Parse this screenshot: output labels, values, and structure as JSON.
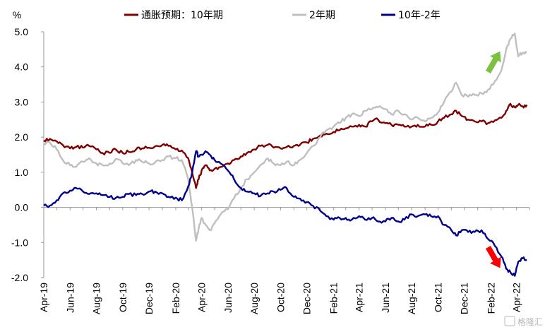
{
  "chart_data": {
    "type": "line",
    "ylabel": "%",
    "ylim": [
      -2.0,
      5.0
    ],
    "yticks": [
      "5.0",
      "4.0",
      "3.0",
      "2.0",
      "1.0",
      "0.0",
      "-1.0",
      "-2.0"
    ],
    "ytick_values": [
      5,
      4,
      3,
      2,
      1,
      0,
      -1,
      -2
    ],
    "xlim": [
      "2019-04-01",
      "2022-05-01"
    ],
    "x_tick_labels": [
      "Apr-19",
      "Jun-19",
      "Aug-19",
      "Oct-19",
      "Dec-19",
      "Feb-20",
      "Apr-20",
      "Jun-20",
      "Aug-20",
      "Oct-20",
      "Dec-20",
      "Feb-21",
      "Apr-21",
      "Jun-21",
      "Aug-21",
      "Oct-21",
      "Dec-21",
      "Feb-22",
      "Apr-22"
    ],
    "x_tick_dates": [
      "2019-04-01",
      "2019-06-01",
      "2019-08-01",
      "2019-10-01",
      "2019-12-01",
      "2020-02-01",
      "2020-04-01",
      "2020-06-01",
      "2020-08-01",
      "2020-10-01",
      "2020-12-01",
      "2021-02-01",
      "2021-04-01",
      "2021-06-01",
      "2021-08-01",
      "2021-10-01",
      "2021-12-01",
      "2022-02-01",
      "2022-04-01"
    ],
    "grid": false,
    "legend_position": "top",
    "series": [
      {
        "name": "通胀预期：10年期",
        "color": "#7f0000",
        "points": [
          [
            "2019-04-01",
            1.9
          ],
          [
            "2019-04-15",
            1.95
          ],
          [
            "2019-05-01",
            1.88
          ],
          [
            "2019-05-15",
            1.78
          ],
          [
            "2019-06-01",
            1.68
          ],
          [
            "2019-06-15",
            1.72
          ],
          [
            "2019-07-01",
            1.7
          ],
          [
            "2019-07-15",
            1.75
          ],
          [
            "2019-08-01",
            1.65
          ],
          [
            "2019-08-15",
            1.55
          ],
          [
            "2019-09-01",
            1.55
          ],
          [
            "2019-09-15",
            1.65
          ],
          [
            "2019-10-01",
            1.55
          ],
          [
            "2019-10-15",
            1.58
          ],
          [
            "2019-11-01",
            1.65
          ],
          [
            "2019-11-15",
            1.68
          ],
          [
            "2019-12-01",
            1.7
          ],
          [
            "2019-12-15",
            1.74
          ],
          [
            "2020-01-01",
            1.78
          ],
          [
            "2020-01-15",
            1.75
          ],
          [
            "2020-02-01",
            1.65
          ],
          [
            "2020-02-15",
            1.62
          ],
          [
            "2020-03-01",
            1.4
          ],
          [
            "2020-03-10",
            1.0
          ],
          [
            "2020-03-19",
            0.55
          ],
          [
            "2020-03-25",
            0.8
          ],
          [
            "2020-04-01",
            1.05
          ],
          [
            "2020-04-10",
            1.2
          ],
          [
            "2020-04-20",
            1.05
          ],
          [
            "2020-05-01",
            1.1
          ],
          [
            "2020-05-15",
            1.15
          ],
          [
            "2020-06-01",
            1.25
          ],
          [
            "2020-06-15",
            1.35
          ],
          [
            "2020-07-01",
            1.45
          ],
          [
            "2020-07-15",
            1.55
          ],
          [
            "2020-08-01",
            1.65
          ],
          [
            "2020-08-15",
            1.75
          ],
          [
            "2020-09-01",
            1.78
          ],
          [
            "2020-09-15",
            1.7
          ],
          [
            "2020-10-01",
            1.68
          ],
          [
            "2020-10-15",
            1.72
          ],
          [
            "2020-11-01",
            1.75
          ],
          [
            "2020-11-15",
            1.78
          ],
          [
            "2020-12-01",
            1.85
          ],
          [
            "2020-12-15",
            1.95
          ],
          [
            "2021-01-01",
            2.05
          ],
          [
            "2021-01-15",
            2.1
          ],
          [
            "2021-02-01",
            2.15
          ],
          [
            "2021-02-15",
            2.2
          ],
          [
            "2021-03-01",
            2.25
          ],
          [
            "2021-03-15",
            2.3
          ],
          [
            "2021-04-01",
            2.35
          ],
          [
            "2021-04-15",
            2.3
          ],
          [
            "2021-05-01",
            2.45
          ],
          [
            "2021-05-15",
            2.5
          ],
          [
            "2021-06-01",
            2.4
          ],
          [
            "2021-06-15",
            2.35
          ],
          [
            "2021-07-01",
            2.35
          ],
          [
            "2021-07-15",
            2.3
          ],
          [
            "2021-08-01",
            2.3
          ],
          [
            "2021-08-15",
            2.35
          ],
          [
            "2021-09-01",
            2.3
          ],
          [
            "2021-09-15",
            2.35
          ],
          [
            "2021-10-01",
            2.45
          ],
          [
            "2021-10-15",
            2.55
          ],
          [
            "2021-11-01",
            2.65
          ],
          [
            "2021-11-12",
            2.75
          ],
          [
            "2021-11-25",
            2.6
          ],
          [
            "2021-12-10",
            2.5
          ],
          [
            "2021-12-25",
            2.45
          ],
          [
            "2022-01-10",
            2.45
          ],
          [
            "2022-01-25",
            2.4
          ],
          [
            "2022-02-10",
            2.48
          ],
          [
            "2022-02-25",
            2.55
          ],
          [
            "2022-03-08",
            2.75
          ],
          [
            "2022-03-18",
            2.95
          ],
          [
            "2022-03-28",
            2.85
          ],
          [
            "2022-04-05",
            2.92
          ],
          [
            "2022-04-15",
            2.88
          ],
          [
            "2022-04-25",
            2.92
          ]
        ]
      },
      {
        "name": "2年期",
        "color": "#bfbfbf",
        "points": [
          [
            "2019-04-01",
            1.82
          ],
          [
            "2019-04-15",
            1.85
          ],
          [
            "2019-05-01",
            1.65
          ],
          [
            "2019-05-15",
            1.35
          ],
          [
            "2019-06-01",
            1.2
          ],
          [
            "2019-06-15",
            1.15
          ],
          [
            "2019-07-01",
            1.3
          ],
          [
            "2019-07-15",
            1.4
          ],
          [
            "2019-08-01",
            1.25
          ],
          [
            "2019-08-15",
            1.2
          ],
          [
            "2019-09-01",
            1.25
          ],
          [
            "2019-09-15",
            1.38
          ],
          [
            "2019-10-01",
            1.25
          ],
          [
            "2019-10-15",
            1.2
          ],
          [
            "2019-11-01",
            1.35
          ],
          [
            "2019-11-15",
            1.3
          ],
          [
            "2019-12-01",
            1.25
          ],
          [
            "2019-12-15",
            1.28
          ],
          [
            "2020-01-01",
            1.35
          ],
          [
            "2020-01-15",
            1.45
          ],
          [
            "2020-02-01",
            1.4
          ],
          [
            "2020-02-15",
            1.35
          ],
          [
            "2020-03-01",
            0.8
          ],
          [
            "2020-03-10",
            0.0
          ],
          [
            "2020-03-19",
            -0.95
          ],
          [
            "2020-03-25",
            -0.6
          ],
          [
            "2020-04-01",
            -0.3
          ],
          [
            "2020-04-10",
            -0.5
          ],
          [
            "2020-04-20",
            -0.65
          ],
          [
            "2020-05-01",
            -0.45
          ],
          [
            "2020-05-15",
            -0.2
          ],
          [
            "2020-06-01",
            -0.05
          ],
          [
            "2020-06-15",
            0.25
          ],
          [
            "2020-07-01",
            0.55
          ],
          [
            "2020-07-15",
            0.8
          ],
          [
            "2020-08-01",
            1.0
          ],
          [
            "2020-08-15",
            1.2
          ],
          [
            "2020-09-01",
            1.4
          ],
          [
            "2020-09-15",
            1.25
          ],
          [
            "2020-10-01",
            1.2
          ],
          [
            "2020-10-15",
            1.3
          ],
          [
            "2020-11-01",
            1.2
          ],
          [
            "2020-11-15",
            1.35
          ],
          [
            "2020-12-01",
            1.55
          ],
          [
            "2020-12-15",
            1.75
          ],
          [
            "2021-01-01",
            2.0
          ],
          [
            "2021-01-15",
            2.2
          ],
          [
            "2021-02-01",
            2.3
          ],
          [
            "2021-02-15",
            2.4
          ],
          [
            "2021-03-01",
            2.55
          ],
          [
            "2021-03-15",
            2.65
          ],
          [
            "2021-04-01",
            2.6
          ],
          [
            "2021-04-15",
            2.75
          ],
          [
            "2021-05-01",
            2.8
          ],
          [
            "2021-05-15",
            2.85
          ],
          [
            "2021-06-01",
            2.8
          ],
          [
            "2021-06-15",
            2.65
          ],
          [
            "2021-07-01",
            2.75
          ],
          [
            "2021-07-15",
            2.65
          ],
          [
            "2021-08-01",
            2.5
          ],
          [
            "2021-08-15",
            2.55
          ],
          [
            "2021-09-01",
            2.45
          ],
          [
            "2021-09-15",
            2.55
          ],
          [
            "2021-10-01",
            2.7
          ],
          [
            "2021-10-15",
            3.0
          ],
          [
            "2021-11-01",
            3.3
          ],
          [
            "2021-11-12",
            3.55
          ],
          [
            "2021-11-25",
            3.2
          ],
          [
            "2021-12-10",
            3.15
          ],
          [
            "2021-12-25",
            3.2
          ],
          [
            "2022-01-10",
            3.25
          ],
          [
            "2022-01-25",
            3.35
          ],
          [
            "2022-02-10",
            3.6
          ],
          [
            "2022-02-25",
            3.9
          ],
          [
            "2022-03-08",
            4.5
          ],
          [
            "2022-03-18",
            4.8
          ],
          [
            "2022-03-28",
            4.95
          ],
          [
            "2022-04-05",
            4.3
          ],
          [
            "2022-04-15",
            4.4
          ],
          [
            "2022-04-25",
            4.42
          ]
        ]
      },
      {
        "name": "10年-2年",
        "color": "#00008b",
        "points": [
          [
            "2019-04-01",
            0.05
          ],
          [
            "2019-04-15",
            0.05
          ],
          [
            "2019-05-01",
            0.2
          ],
          [
            "2019-05-15",
            0.4
          ],
          [
            "2019-06-01",
            0.48
          ],
          [
            "2019-06-15",
            0.55
          ],
          [
            "2019-07-01",
            0.45
          ],
          [
            "2019-07-15",
            0.38
          ],
          [
            "2019-08-01",
            0.4
          ],
          [
            "2019-08-15",
            0.35
          ],
          [
            "2019-09-01",
            0.3
          ],
          [
            "2019-09-15",
            0.27
          ],
          [
            "2019-10-01",
            0.3
          ],
          [
            "2019-10-15",
            0.38
          ],
          [
            "2019-11-01",
            0.35
          ],
          [
            "2019-11-15",
            0.38
          ],
          [
            "2019-12-01",
            0.45
          ],
          [
            "2019-12-15",
            0.45
          ],
          [
            "2020-01-01",
            0.4
          ],
          [
            "2020-01-15",
            0.3
          ],
          [
            "2020-02-01",
            0.28
          ],
          [
            "2020-02-15",
            0.2
          ],
          [
            "2020-03-01",
            0.6
          ],
          [
            "2020-03-10",
            1.0
          ],
          [
            "2020-03-19",
            1.6
          ],
          [
            "2020-03-25",
            1.45
          ],
          [
            "2020-04-01",
            1.5
          ],
          [
            "2020-04-10",
            1.6
          ],
          [
            "2020-04-20",
            1.5
          ],
          [
            "2020-05-01",
            1.35
          ],
          [
            "2020-05-15",
            1.25
          ],
          [
            "2020-06-01",
            1.05
          ],
          [
            "2020-06-15",
            0.8
          ],
          [
            "2020-07-01",
            0.55
          ],
          [
            "2020-07-15",
            0.45
          ],
          [
            "2020-08-01",
            0.4
          ],
          [
            "2020-08-15",
            0.32
          ],
          [
            "2020-09-01",
            0.4
          ],
          [
            "2020-09-15",
            0.45
          ],
          [
            "2020-10-01",
            0.5
          ],
          [
            "2020-10-15",
            0.55
          ],
          [
            "2020-11-01",
            0.3
          ],
          [
            "2020-11-15",
            0.25
          ],
          [
            "2020-12-01",
            0.15
          ],
          [
            "2020-12-15",
            0.05
          ],
          [
            "2021-01-01",
            -0.1
          ],
          [
            "2021-01-15",
            -0.25
          ],
          [
            "2021-02-01",
            -0.35
          ],
          [
            "2021-02-15",
            -0.3
          ],
          [
            "2021-03-01",
            -0.3
          ],
          [
            "2021-03-15",
            -0.35
          ],
          [
            "2021-04-01",
            -0.25
          ],
          [
            "2021-04-15",
            -0.35
          ],
          [
            "2021-05-01",
            -0.3
          ],
          [
            "2021-05-15",
            -0.4
          ],
          [
            "2021-06-01",
            -0.4
          ],
          [
            "2021-06-15",
            -0.3
          ],
          [
            "2021-07-01",
            -0.4
          ],
          [
            "2021-07-15",
            -0.35
          ],
          [
            "2021-08-01",
            -0.2
          ],
          [
            "2021-08-15",
            -0.25
          ],
          [
            "2021-09-01",
            -0.2
          ],
          [
            "2021-09-15",
            -0.25
          ],
          [
            "2021-10-01",
            -0.25
          ],
          [
            "2021-10-15",
            -0.5
          ],
          [
            "2021-11-01",
            -0.65
          ],
          [
            "2021-11-12",
            -0.8
          ],
          [
            "2021-11-25",
            -0.65
          ],
          [
            "2021-12-10",
            -0.7
          ],
          [
            "2021-12-25",
            -0.7
          ],
          [
            "2022-01-10",
            -0.65
          ],
          [
            "2022-01-25",
            -0.9
          ],
          [
            "2022-02-10",
            -1.1
          ],
          [
            "2022-02-25",
            -1.4
          ],
          [
            "2022-03-08",
            -1.75
          ],
          [
            "2022-03-18",
            -1.85
          ],
          [
            "2022-03-28",
            -1.95
          ],
          [
            "2022-04-05",
            -1.55
          ],
          [
            "2022-04-15",
            -1.45
          ],
          [
            "2022-04-25",
            -1.5
          ]
        ]
      }
    ],
    "annotations": [
      {
        "kind": "arrow-up",
        "color": "#7cc142",
        "date": "2022-02-08",
        "value": 4.15,
        "angle": 30
      },
      {
        "kind": "arrow-down",
        "color": "#ff0000",
        "date": "2022-02-08",
        "value": -1.43,
        "angle": -30
      }
    ]
  },
  "watermark": {
    "text": "格隆汇",
    "icon": "logo-badge-icon"
  }
}
